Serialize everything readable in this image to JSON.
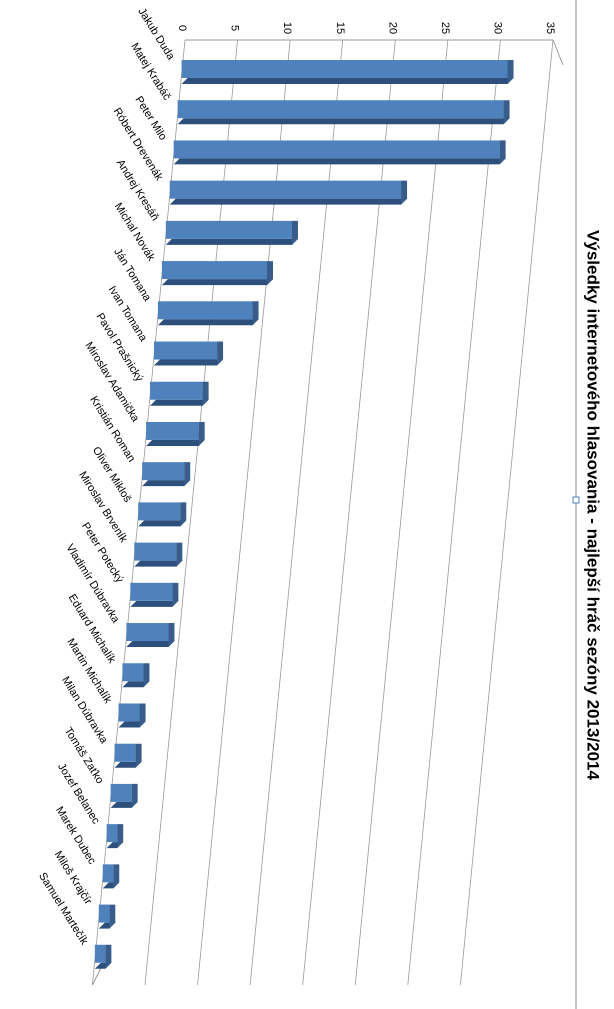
{
  "chart_data": {
    "type": "bar",
    "title": "Výsledky internetového hlasovania - najlepší hráč sezóny 2013/2014",
    "categories": [
      "Jakub Duda",
      "Matej Krabáč",
      "Peter Milo",
      "Róbert Drevenák",
      "Andrej Kresáň",
      "Michal Novák",
      "Ján Tomana",
      "Ivan Tomana",
      "Pavol Prašnický",
      "Miroslav Adamička",
      "Kristián Roman",
      "Oliver Mikloš",
      "Miroslav Brveník",
      "Peter Potecký",
      "Vladimír Dúbravka",
      "Eduard Michalík",
      "Martin Michalík",
      "Milan Dúbravka",
      "Tomáš Zaťko",
      "Jozef Belanec",
      "Marek Dubec",
      "Miloš Krajčír",
      "Samuel Martečík"
    ],
    "values": [
      31,
      31,
      31,
      22,
      12,
      10,
      9,
      6,
      5,
      5,
      4,
      4,
      4,
      4,
      4,
      2,
      2,
      2,
      2,
      1,
      1,
      1,
      1
    ],
    "color": "#4f81bd",
    "ylim": [
      0,
      35
    ],
    "yticks": [
      0,
      5,
      10,
      15,
      20,
      25,
      30,
      35
    ],
    "grid": true
  }
}
